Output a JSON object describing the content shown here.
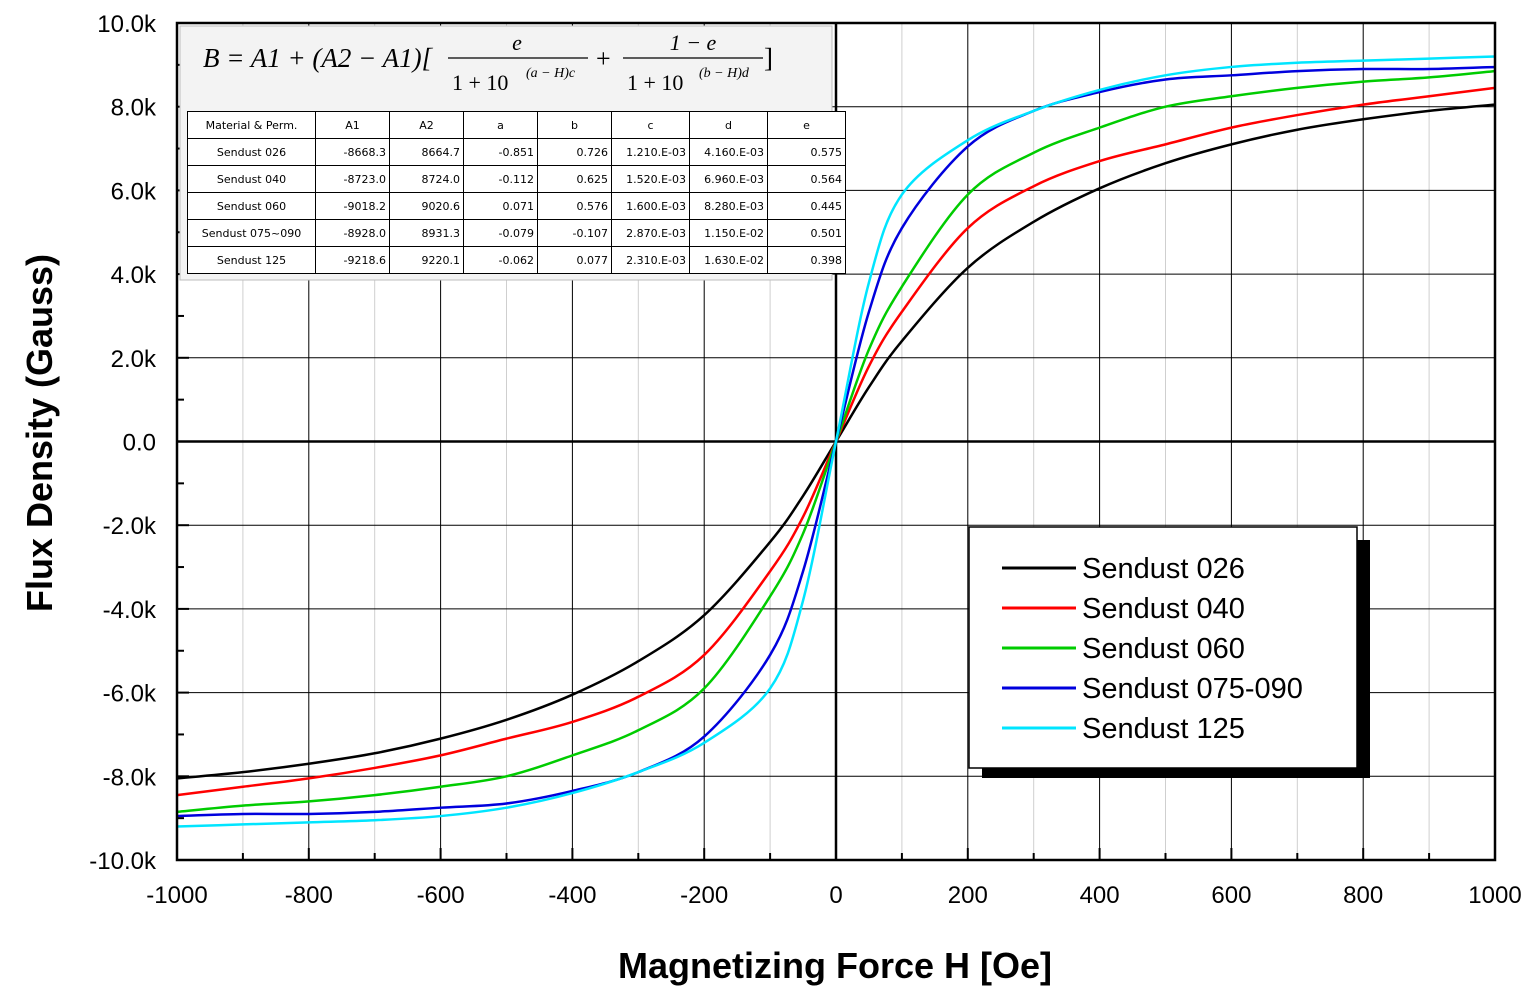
{
  "chart_data": {
    "type": "line",
    "xlabel": "Magnetizing Force H [Oe]",
    "ylabel": "Flux Density (Gauss)",
    "xlim": [
      -1000,
      1000
    ],
    "ylim": [
      -10000,
      10000
    ],
    "x_ticks": [
      "-1000",
      "-800",
      "-600",
      "-400",
      "-200",
      "0",
      "200",
      "400",
      "600",
      "800",
      "1000"
    ],
    "y_ticks": [
      "10.0k",
      "8.0k",
      "6.0k",
      "4.0k",
      "2.0k",
      "0.0",
      "-2.0k",
      "-4.0k",
      "-6.0k",
      "-8.0k",
      "-10.0k"
    ],
    "grid": true,
    "legend_position": "bottom-right",
    "formula": {
      "lhs": "B = A1 + (A2 − A1)[",
      "t1_num": "e",
      "t1_den": "1 + 10",
      "t1_exp": "(a − H)c",
      "plus": "+",
      "t2_num": "1 − e",
      "t2_den": "1 + 10",
      "t2_exp": "(b − H)d",
      "close": "]"
    },
    "table": {
      "columns": [
        "Material & Perm.",
        "A1",
        "A2",
        "a",
        "b",
        "c",
        "d",
        "e"
      ],
      "rows": [
        [
          "Sendust 026",
          "-8668.3",
          "8664.7",
          "-0.851",
          "0.726",
          "1.210.E-03",
          "4.160.E-03",
          "0.575"
        ],
        [
          "Sendust 040",
          "-8723.0",
          "8724.0",
          "-0.112",
          "0.625",
          "1.520.E-03",
          "6.960.E-03",
          "0.564"
        ],
        [
          "Sendust 060",
          "-9018.2",
          "9020.6",
          "0.071",
          "0.576",
          "1.600.E-03",
          "8.280.E-03",
          "0.445"
        ],
        [
          "Sendust 075~090",
          "-8928.0",
          "8931.3",
          "-0.079",
          "-0.107",
          "2.870.E-03",
          "1.150.E-02",
          "0.501"
        ],
        [
          "Sendust 125",
          "-9218.6",
          "9220.1",
          "-0.062",
          "0.077",
          "2.310.E-03",
          "1.630.E-02",
          "0.398"
        ]
      ]
    },
    "x": [
      -1000,
      -900,
      -800,
      -700,
      -600,
      -500,
      -400,
      -300,
      -200,
      -100,
      -50,
      0,
      50,
      100,
      200,
      300,
      400,
      500,
      600,
      700,
      800,
      900,
      1000
    ],
    "series": [
      {
        "name": "Sendust 026",
        "color": "#000000",
        "values": [
          -8050,
          -7900,
          -7700,
          -7450,
          -7100,
          -6650,
          -6050,
          -5250,
          -4150,
          -2400,
          -1300,
          0,
          1300,
          2400,
          4150,
          5250,
          6050,
          6650,
          7100,
          7450,
          7700,
          7900,
          8050
        ]
      },
      {
        "name": "Sendust 040",
        "color": "#ff0000",
        "values": [
          -8450,
          -8250,
          -8050,
          -7800,
          -7500,
          -7100,
          -6700,
          -6100,
          -5100,
          -3100,
          -1800,
          0,
          1800,
          3100,
          5100,
          6100,
          6700,
          7100,
          7500,
          7800,
          8050,
          8250,
          8450
        ]
      },
      {
        "name": "Sendust 060",
        "color": "#00cc00",
        "values": [
          -8850,
          -8700,
          -8600,
          -8450,
          -8250,
          -8000,
          -7500,
          -6900,
          -5900,
          -3700,
          -2200,
          0,
          2200,
          3700,
          5900,
          6900,
          7500,
          8000,
          8250,
          8450,
          8600,
          8700,
          8850
        ]
      },
      {
        "name": "Sendust 075-090",
        "color": "#0000dd",
        "values": [
          -8950,
          -8900,
          -8900,
          -8850,
          -8750,
          -8650,
          -8350,
          -7900,
          -7050,
          -5100,
          -3100,
          0,
          3100,
          5100,
          7050,
          7900,
          8350,
          8650,
          8750,
          8850,
          8900,
          8900,
          8950
        ]
      },
      {
        "name": "Sendust 125",
        "color": "#00e5ff",
        "values": [
          -9200,
          -9150,
          -9100,
          -9050,
          -8950,
          -8750,
          -8400,
          -7900,
          -7200,
          -5900,
          -3800,
          0,
          3800,
          5900,
          7200,
          7900,
          8400,
          8750,
          8950,
          9050,
          9100,
          9150,
          9200
        ]
      }
    ]
  }
}
